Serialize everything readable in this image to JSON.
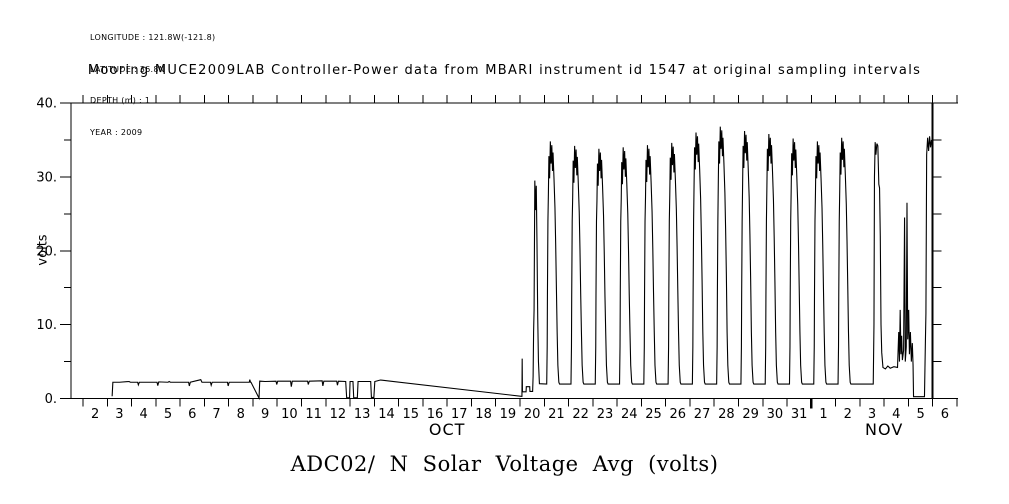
{
  "meta": {
    "lines": [
      "LONGITUDE : 121.8W(-121.8)",
      "LATITUDE : 36.8N",
      "DEPTH (m) : 1",
      "YEAR : 2009"
    ]
  },
  "title": "Mooring MUCE2009LAB Controller-Power data from MBARI instrument id 1547 at original sampling intervals",
  "bottom_title": "ADC02/ N Solar Voltage Avg (volts)",
  "colors": {
    "foreground": "#000000",
    "background": "#ffffff"
  },
  "y_axis": {
    "label": "volts",
    "range": [
      0,
      40
    ],
    "major_ticks": [
      0,
      10,
      20,
      30,
      40
    ],
    "major_tick_labels": [
      "0.",
      "10.",
      "20.",
      "30.",
      "40."
    ],
    "minor_ticks": [
      5,
      15,
      25,
      35
    ]
  },
  "x_axis": {
    "day_labels": [
      "2",
      "3",
      "4",
      "5",
      "6",
      "7",
      "8",
      "9",
      "10",
      "11",
      "12",
      "13",
      "14",
      "15",
      "16",
      "17",
      "18",
      "19",
      "20",
      "21",
      "22",
      "23",
      "24",
      "25",
      "26",
      "27",
      "28",
      "29",
      "30",
      "31",
      "1",
      "2",
      "3",
      "4",
      "5",
      "6"
    ],
    "tick_count": 37,
    "month_boundary_tick_index": 30,
    "data_end_tick_index": 35,
    "month_labels": [
      {
        "label": "OCT",
        "tick_index": 15
      },
      {
        "label": "NOV",
        "tick_index": 33
      }
    ]
  },
  "end_axis": {
    "minor_ticks": [
      5,
      10,
      15,
      20,
      25,
      30,
      35
    ]
  },
  "chart_data": {
    "type": "line",
    "title": "Mooring MUCE2009LAB Controller-Power data from MBARI instrument id 1547 at original sampling intervals",
    "xlabel_months": [
      "OCT",
      "NOV"
    ],
    "ylabel": "volts",
    "ylim": [
      0,
      40
    ],
    "x_unit": "days since 2009-10-02 00:00",
    "xlim": [
      0,
      36
    ],
    "grid": false,
    "legend": "none",
    "series_name": "ADC02/ N Solar Voltage Avg (volts)",
    "night_low_volts": 1.95,
    "pre_burst_points": [
      [
        1.2,
        0.3
      ],
      [
        1.23,
        2.2
      ],
      [
        1.5,
        2.2
      ],
      [
        1.9,
        2.3
      ],
      [
        1.95,
        2.2
      ],
      [
        2.25,
        2.2
      ],
      [
        2.28,
        1.85
      ],
      [
        2.32,
        2.2
      ],
      [
        2.7,
        2.2
      ],
      [
        3.05,
        2.2
      ],
      [
        3.08,
        1.75
      ],
      [
        3.12,
        2.25
      ],
      [
        3.5,
        2.2
      ],
      [
        3.55,
        2.3
      ],
      [
        3.6,
        2.2
      ],
      [
        4.35,
        2.2
      ],
      [
        4.38,
        1.7
      ],
      [
        4.42,
        2.2
      ],
      [
        4.85,
        2.55
      ],
      [
        4.9,
        2.2
      ],
      [
        5.25,
        2.2
      ],
      [
        5.28,
        1.8
      ],
      [
        5.32,
        2.2
      ],
      [
        5.95,
        2.2
      ],
      [
        5.98,
        1.7
      ],
      [
        6.02,
        2.2
      ],
      [
        6.85,
        2.2
      ],
      [
        6.87,
        2.55
      ],
      [
        6.9,
        2.2
      ],
      [
        6.92,
        2.2
      ],
      [
        7.25,
        0.05
      ],
      [
        7.28,
        2.35
      ],
      [
        7.5,
        2.3
      ],
      [
        7.95,
        2.35
      ],
      [
        7.98,
        1.9
      ],
      [
        8.02,
        2.35
      ],
      [
        8.55,
        2.35
      ],
      [
        8.58,
        1.6
      ],
      [
        8.62,
        2.35
      ],
      [
        9.25,
        2.35
      ],
      [
        9.28,
        1.9
      ],
      [
        9.32,
        2.35
      ],
      [
        9.85,
        2.4
      ],
      [
        9.88,
        1.7
      ],
      [
        9.92,
        2.35
      ],
      [
        10.45,
        2.35
      ],
      [
        10.48,
        1.8
      ],
      [
        10.52,
        2.35
      ],
      [
        10.82,
        2.3
      ],
      [
        10.86,
        0.1
      ],
      [
        10.98,
        0.1
      ],
      [
        11.0,
        2.3
      ],
      [
        11.12,
        2.3
      ],
      [
        11.15,
        0.1
      ],
      [
        11.3,
        0.1
      ],
      [
        11.33,
        2.3
      ],
      [
        11.85,
        2.3
      ],
      [
        11.88,
        0.15
      ],
      [
        11.98,
        0.15
      ],
      [
        12.02,
        2.3
      ],
      [
        12.25,
        2.5
      ],
      [
        18.05,
        0.3
      ],
      [
        18.08,
        0.3
      ],
      [
        18.09,
        5.4
      ],
      [
        18.1,
        0.9
      ],
      [
        18.25,
        0.9
      ],
      [
        18.26,
        1.6
      ],
      [
        18.4,
        1.6
      ],
      [
        18.41,
        0.95
      ],
      [
        18.52,
        0.95
      ],
      [
        18.54,
        3.0
      ],
      [
        18.56,
        9.0
      ],
      [
        18.58,
        12.0
      ],
      [
        18.61,
        29.5
      ],
      [
        18.64,
        25.5
      ],
      [
        18.67,
        28.8
      ],
      [
        18.7,
        21.0
      ],
      [
        18.73,
        11.0
      ],
      [
        18.76,
        5.0
      ],
      [
        18.8,
        2.0
      ]
    ],
    "daily_cycles": {
      "profile": [
        {
          "dt": 0.1,
          "v": 1.95
        },
        {
          "dt": 0.12,
          "v": 7
        },
        {
          "dt": 0.13,
          "v": 14
        },
        {
          "dt": 0.15,
          "v": 24
        },
        {
          "dt": 0.17,
          "dv": -7
        },
        {
          "dt": 0.19,
          "dv": -2
        },
        {
          "dt": 0.22,
          "dv": -5
        },
        {
          "dt": 0.25,
          "dv": 0
        },
        {
          "dt": 0.28,
          "dv": -3
        },
        {
          "dt": 0.31,
          "dv": -0.5
        },
        {
          "dt": 0.34,
          "dv": -4
        },
        {
          "dt": 0.36,
          "dv": -1.5
        },
        {
          "dt": 0.4,
          "dv": -5
        },
        {
          "dt": 0.44,
          "dv": -9
        },
        {
          "dt": 0.47,
          "dv": -14
        },
        {
          "dt": 0.5,
          "dv": -20
        },
        {
          "dt": 0.53,
          "v": 9
        },
        {
          "dt": 0.56,
          "v": 4.5
        },
        {
          "dt": 0.6,
          "v": 2.2
        },
        {
          "dt": 0.63,
          "v": 1.95
        },
        {
          "dt": 1.1,
          "v": 1.95
        }
      ],
      "days": [
        {
          "date": "Oct 21",
          "base": 19,
          "peak": 34.8
        },
        {
          "date": "Oct 22",
          "base": 20,
          "peak": 34.2
        },
        {
          "date": "Oct 23",
          "base": 21,
          "peak": 33.8
        },
        {
          "date": "Oct 24",
          "base": 22,
          "peak": 34.0
        },
        {
          "date": "Oct 25",
          "base": 23,
          "peak": 34.3
        },
        {
          "date": "Oct 26",
          "base": 24,
          "peak": 34.6
        },
        {
          "date": "Oct 27",
          "base": 25,
          "peak": 36.0
        },
        {
          "date": "Oct 28",
          "base": 26,
          "peak": 36.8
        },
        {
          "date": "Oct 29",
          "base": 27,
          "peak": 36.2
        },
        {
          "date": "Oct 30",
          "base": 28,
          "peak": 35.8
        },
        {
          "date": "Oct 31",
          "base": 29,
          "peak": 35.2
        },
        {
          "date": "Nov 1",
          "base": 30,
          "peak": 34.8
        },
        {
          "date": "Nov 2",
          "base": 31,
          "peak": 35.3
        }
      ]
    },
    "tail_points": [
      [
        32.55,
        1.95
      ],
      [
        32.58,
        10
      ],
      [
        32.6,
        30
      ],
      [
        32.63,
        34.7
      ],
      [
        32.66,
        33
      ],
      [
        32.7,
        34.5
      ],
      [
        32.74,
        34.2
      ],
      [
        32.78,
        29
      ],
      [
        32.81,
        28.5
      ],
      [
        32.84,
        22
      ],
      [
        32.87,
        10
      ],
      [
        32.9,
        6.2
      ],
      [
        32.95,
        4.2
      ],
      [
        33.05,
        4.0
      ],
      [
        33.15,
        4.4
      ],
      [
        33.25,
        4.1
      ],
      [
        33.4,
        4.3
      ],
      [
        33.55,
        4.2
      ],
      [
        33.6,
        9
      ],
      [
        33.63,
        5
      ],
      [
        33.66,
        12
      ],
      [
        33.69,
        6
      ],
      [
        33.72,
        8.5
      ],
      [
        33.75,
        5.2
      ],
      [
        33.8,
        6.5
      ],
      [
        33.84,
        24.5
      ],
      [
        33.87,
        5
      ],
      [
        33.91,
        7
      ],
      [
        33.94,
        26.5
      ],
      [
        33.97,
        8
      ],
      [
        34.01,
        12
      ],
      [
        34.04,
        6
      ],
      [
        34.08,
        9
      ],
      [
        34.12,
        5
      ],
      [
        34.16,
        7.5
      ],
      [
        34.19,
        4.5
      ],
      [
        34.21,
        0.25
      ],
      [
        34.66,
        0.25
      ],
      [
        34.7,
        8
      ],
      [
        34.72,
        11.5
      ],
      [
        34.75,
        33
      ],
      [
        34.79,
        35.3
      ],
      [
        34.83,
        33.5
      ],
      [
        34.87,
        35.5
      ],
      [
        34.91,
        34
      ],
      [
        34.95,
        35
      ],
      [
        35.0,
        34.3
      ]
    ]
  }
}
